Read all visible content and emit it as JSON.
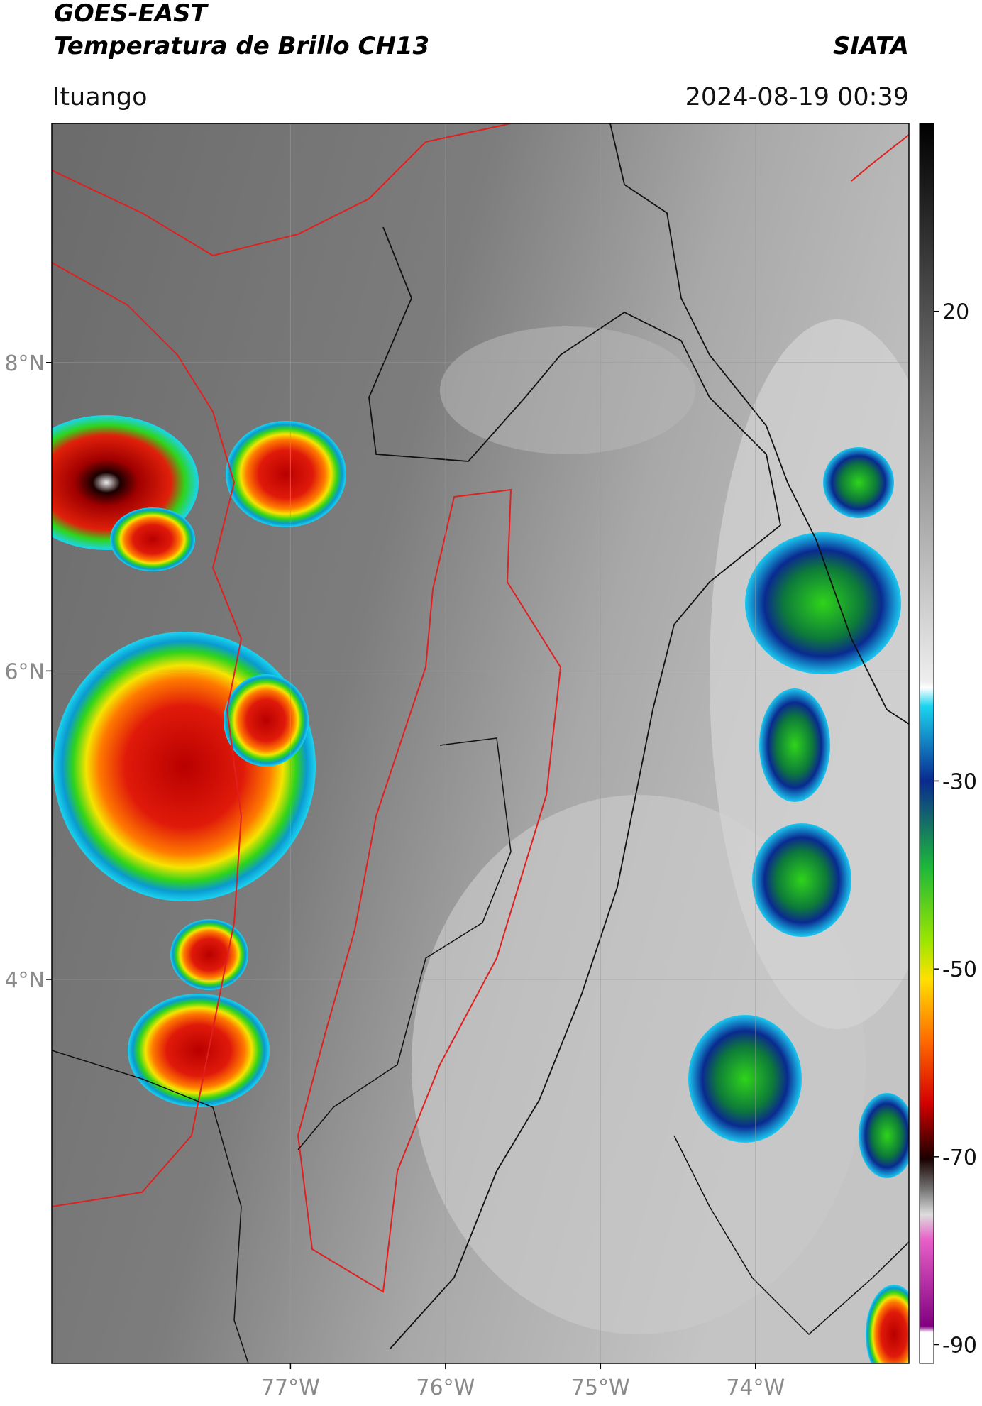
{
  "header": {
    "title_line1": "GOES-EAST",
    "title_line2": "Temperatura de Brillo CH13",
    "source": "SIATA",
    "location": "Ituango",
    "datetime": "2024-08-19 00:39"
  },
  "map": {
    "lat_lim": [
      1.51,
      9.55
    ],
    "lon_lim": [
      -78.54,
      -73.01
    ],
    "lat_ticks": [
      {
        "value": 8,
        "label": "8°N"
      },
      {
        "value": 6,
        "label": "6°N"
      },
      {
        "value": 4,
        "label": "4°N"
      }
    ],
    "lon_ticks": [
      {
        "value": -77,
        "label": "77°W"
      },
      {
        "value": -76,
        "label": "76°W"
      },
      {
        "value": -75,
        "label": "75°W"
      },
      {
        "value": -74,
        "label": "74°W"
      }
    ],
    "grid": true
  },
  "colorbar": {
    "lim": [
      -92,
      40
    ],
    "ticks": [
      20,
      -30,
      -50,
      -70,
      -90
    ]
  }
}
